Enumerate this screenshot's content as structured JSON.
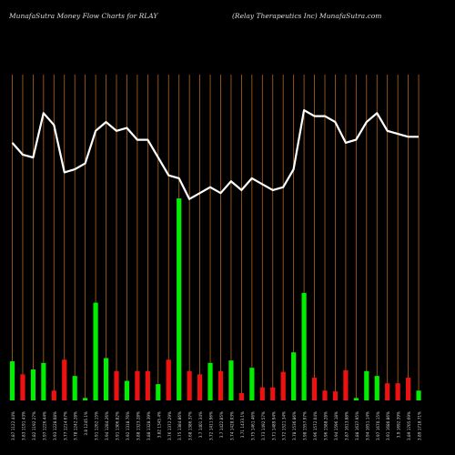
{
  "header": {
    "left": "MunafaSutra  Money Flow  Charts for RLAY",
    "right": "(Relay Therapeutics Inc) MunafaSutra.com"
  },
  "colors": {
    "background": "#000000",
    "gridline": "#b5651d",
    "price_line": "#ffffff",
    "up_bar": "#00ee00",
    "down_bar": "#ee1111",
    "label": "#cfcfcf"
  },
  "chart_data": {
    "type": "bar",
    "title": "MunafaSutra  Money Flow  Charts for RLAY",
    "subtitle": "(Relay Therapeutics Inc) MunafaSutra.com",
    "grid": true,
    "categories": [
      "3.87 1122.44%",
      "3.83 1191.43%",
      "3.82 1192.27%",
      "3.97 1226.44%",
      "3.93 1228.08%",
      "3.77 1214.67%",
      "3.78 1242.28%",
      "3.8 1245.1%",
      "3.91 1262.15%",
      "3.94 1284.26%",
      "3.91 1306.82%",
      "3.92 1318.76%",
      "3.88 1323.28%",
      "3.88 1328.39%",
      "3.82 1345.4%",
      "3.76 1372.29%",
      "3.75 1384.86%",
      "3.68 1386.37%",
      "3.7 1401.34%",
      "3.72 1411.96%",
      "3.7 1422.85%",
      "3.74 1428.03%",
      "3.71 1433.1%",
      "3.75 1461.46%",
      "3.73 1492.57%",
      "3.71 1489.94%",
      "3.72 1521.34%",
      "3.78 1536.86%",
      "3.98 1557.97%",
      "3.96 1572.04%",
      "3.96 1588.28%",
      "3.94 1596.18%",
      "3.87 1613.88%",
      "3.88 1637.95%",
      "3.94 1651.14%",
      "3.97 1670.15%",
      "3.91 1680.86%",
      "3.9 1692.39%",
      "3.89 1705.69%",
      "3.89 1718.71%"
    ],
    "series": [
      {
        "values": [
          3.87,
          3.83,
          3.82,
          3.97,
          3.93,
          3.77,
          3.78,
          3.8,
          3.91,
          3.94,
          3.91,
          3.92,
          3.88,
          3.88,
          3.82,
          3.76,
          3.75,
          3.68,
          3.7,
          3.72,
          3.7,
          3.74,
          3.71,
          3.75,
          3.73,
          3.71,
          3.72,
          3.78,
          3.98,
          3.96,
          3.96,
          3.94,
          3.87,
          3.88,
          3.94,
          3.97,
          3.91,
          3.9,
          3.89,
          3.89
        ]
      },
      {
        "values": [
          2.4,
          1.6,
          1.9,
          2.3,
          0.6,
          2.5,
          1.5,
          0.15,
          6.0,
          2.6,
          1.8,
          1.2,
          1.8,
          1.8,
          1.0,
          2.5,
          12.4,
          1.8,
          1.6,
          2.3,
          1.8,
          2.45,
          0.45,
          2.0,
          0.8,
          0.8,
          1.75,
          2.95,
          6.6,
          1.4,
          0.6,
          0.55,
          1.85,
          0.15,
          1.8,
          1.5,
          1.05,
          1.05,
          1.4,
          0.6
        ],
        "colors": [
          "up",
          "down",
          "up",
          "up",
          "down",
          "down",
          "up",
          "up",
          "up",
          "up",
          "down",
          "up",
          "down",
          "down",
          "up",
          "down",
          "up",
          "down",
          "down",
          "up",
          "down",
          "up",
          "down",
          "up",
          "down",
          "down",
          "down",
          "up",
          "up",
          "down",
          "down",
          "down",
          "down",
          "up",
          "up",
          "up",
          "down",
          "down",
          "down",
          "up"
        ]
      }
    ],
    "price_range": [
      3.0,
      4.1
    ],
    "flow_range": [
      0,
      20
    ]
  }
}
